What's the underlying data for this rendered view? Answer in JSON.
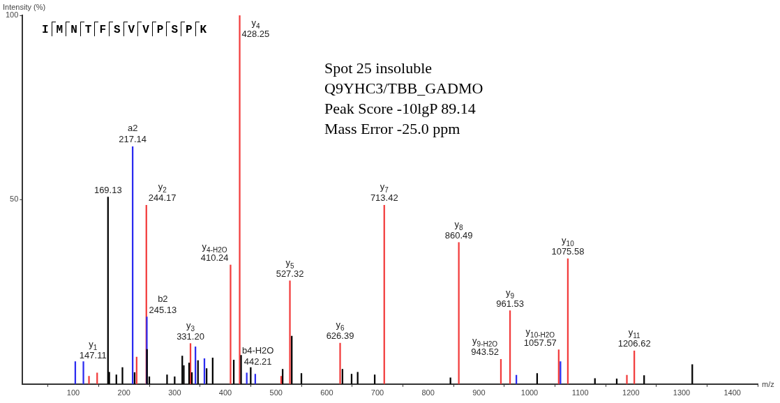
{
  "chart_data": {
    "type": "bar",
    "ylabel": "Intensity (%)",
    "xlabel": "m/z",
    "xlim": [
      0,
      1450
    ],
    "xticks": [
      100,
      200,
      300,
      400,
      500,
      600,
      700,
      800,
      900,
      1000,
      1100,
      1200,
      1300,
      1400
    ],
    "ylim": [
      0,
      100
    ],
    "yticks": [
      50,
      100
    ],
    "grid": false,
    "legend": false,
    "series": [
      {
        "color": "#000000",
        "x": [
          168.5,
          171,
          185,
          197,
          221,
          245.5,
          250,
          285,
          300,
          315,
          318,
          328.5,
          334,
          346,
          363,
          375,
          416.6,
          431,
          450,
          513,
          531,
          550,
          631,
          649,
          661,
          694.6,
          844,
          1015,
          1129,
          1172,
          1226,
          1321
        ],
        "values": [
          50.7,
          3.2,
          2.5,
          4.5,
          3.1,
          9.4,
          2,
          2.5,
          2,
          7.6,
          5,
          5.7,
          3.1,
          6.4,
          4.2,
          7.1,
          6.5,
          7.8,
          4.5,
          4,
          13,
          2.9,
          4,
          2.7,
          3.2,
          2.5,
          1.7,
          2.9,
          1.5,
          1.4,
          2.3,
          5.3
        ]
      },
      {
        "color": "#2b2bf0",
        "x": [
          104,
          120,
          217.14,
          245.13,
          341,
          358.7,
          442.21,
          459,
          974,
          1061
        ],
        "values": [
          6.1,
          6.1,
          64.4,
          18.2,
          10.1,
          6.9,
          3,
          2.7,
          2.4,
          6.1
        ]
      },
      {
        "color": "#f23c3c",
        "x": [
          131,
          147.11,
          225,
          244.17,
          331.2,
          410.24,
          428.25,
          510,
          527.32,
          626.39,
          713.42,
          860.49,
          943.52,
          961.53,
          1057.57,
          1075.58,
          1192,
          1206.62
        ],
        "values": [
          2.1,
          3,
          7.3,
          48.5,
          11,
          32.3,
          100,
          2.1,
          28,
          11.1,
          48.5,
          38.4,
          6.7,
          19.9,
          9.3,
          34,
          2.4,
          9
        ]
      }
    ],
    "annotations": [
      "IMNTFSVVPSPK",
      "Spot 25 insoluble",
      "Q9YHC3/TBB_GADMO",
      "Peak Score -10lgP 89.14",
      "Mass Error -25.0 ppm",
      {
        "text": "y$_{4}$\n428.25",
        "x": 428.25,
        "y": 100
      },
      {
        "text": "a2\n217.14",
        "x": 217.14,
        "y": 64.4
      },
      {
        "text": "169.13",
        "x": 168.5,
        "y": 50.7
      },
      {
        "text": "y$_{2}$\n244.17",
        "x": 244.17,
        "y": 48.5
      },
      {
        "text": "b2\n245.13",
        "x": 245.13,
        "y": 18.2
      },
      {
        "text": "y$_{1}$\n147.11",
        "x": 147.11,
        "y": 3
      },
      {
        "text": "y$_{3}$\n331.20",
        "x": 331.2,
        "y": 11
      },
      {
        "text": "y$_{4-H2O}$\n410.24",
        "x": 410.24,
        "y": 32.3
      },
      {
        "text": "b4-H2O\n442.21",
        "x": 442.21,
        "y": 3
      },
      {
        "text": "y$_{5}$\n527.32",
        "x": 527.32,
        "y": 28
      },
      {
        "text": "y$_{6}$\n626.39",
        "x": 626.39,
        "y": 11.1
      },
      {
        "text": "y$_{7}$\n713.42",
        "x": 713.42,
        "y": 48.5
      },
      {
        "text": "y$_{8}$\n860.49",
        "x": 860.49,
        "y": 38.4
      },
      {
        "text": "y$_{9-H2O}$\n943.52",
        "x": 943.52,
        "y": 6.7
      },
      {
        "text": "y$_{9}$\n961.53",
        "x": 961.53,
        "y": 19.9
      },
      {
        "text": "y$_{10-H2O}$\n1057.57",
        "x": 1057.57,
        "y": 9.3
      },
      {
        "text": "y$_{10}$\n1075.58",
        "x": 1075.58,
        "y": 34
      },
      {
        "text": "y$_{11}$\n1206.62",
        "x": 1206.62,
        "y": 9
      }
    ]
  }
}
